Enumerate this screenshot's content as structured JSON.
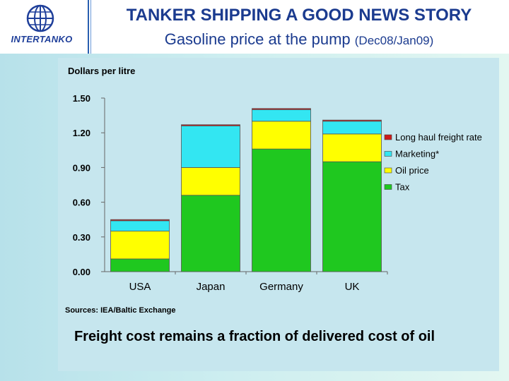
{
  "header": {
    "logo_text": "INTERTANKO",
    "title": "TANKER SHIPPING A GOOD NEWS STORY",
    "subtitle_main": "Gasoline price at the pump",
    "subtitle_small": "(Dec08/Jan09)"
  },
  "footer": {
    "conclusion": "Freight cost remains a fraction of delivered cost of oil"
  },
  "colors": {
    "tax": "#1fc81f",
    "oil_price": "#ffff00",
    "marketing": "#33e6f2",
    "freight": "#cc1a1a",
    "accent": "#1b3b8f"
  },
  "chart_data": {
    "type": "bar",
    "stacked": true,
    "ylabel": "Dollars per litre",
    "categories": [
      "USA",
      "Japan",
      "Germany",
      "UK"
    ],
    "ylim": [
      0,
      1.5
    ],
    "yticks": [
      "1.50",
      "1.20",
      "0.90",
      "0.60",
      "0.30",
      "0.00"
    ],
    "grid": false,
    "legend_position": "right",
    "series": [
      {
        "name": "Tax",
        "values": [
          0.11,
          0.66,
          1.06,
          0.95
        ]
      },
      {
        "name": "Oil price",
        "values": [
          0.24,
          0.24,
          0.24,
          0.24
        ]
      },
      {
        "name": "Marketing*",
        "values": [
          0.09,
          0.36,
          0.1,
          0.11
        ]
      },
      {
        "name": "Long haul freight rate",
        "values": [
          0.01,
          0.01,
          0.01,
          0.01
        ]
      }
    ],
    "legend_order": [
      "Long haul freight rate",
      "Marketing*",
      "Oil price",
      "Tax"
    ],
    "source": "Sources: IEA/Baltic Exchange"
  }
}
